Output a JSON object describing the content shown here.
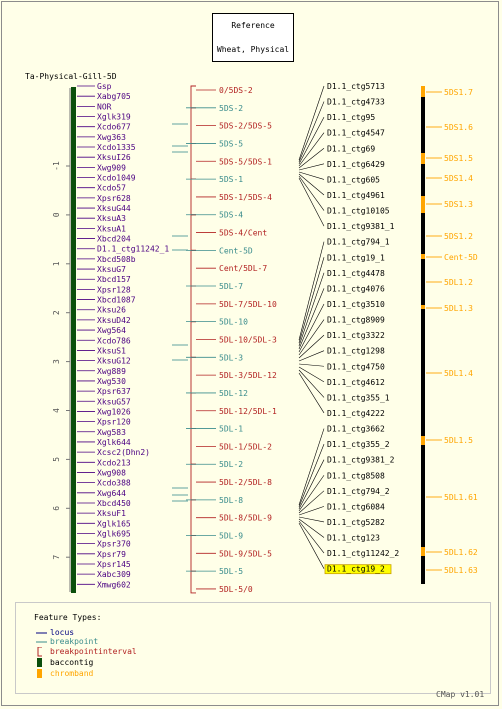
{
  "reference": {
    "line1": "Reference",
    "line2": "Wheat, Physical"
  },
  "map_title": "Ta-Physical-Gill-5D",
  "axis_ticks": [
    "-1",
    "0",
    "1",
    "2",
    "3",
    "4",
    "5",
    "6",
    "7"
  ],
  "loci": [
    "Gsp",
    "Xabg705",
    "NOR",
    "Xglk319",
    "Xcdo677",
    "Xwg363",
    "Xcdo1335",
    "XksuI26",
    "Xwg909",
    "Xcdo1049",
    "Xcdo57",
    "Xpsr628",
    "XksuG44",
    "XksuA3",
    "XksuA1",
    "Xbcd204",
    "D1.1_ctg11242_1",
    "Xbcd508b",
    "XksuG7",
    "Xbcd157",
    "Xpsr128",
    "Xbcd1087",
    "Xksu26",
    "XksuD42",
    "Xwg564",
    "Xcdo786",
    "XksuS1",
    "XksuG12",
    "Xwg889",
    "Xwg530",
    "Xpsr637",
    "XksuG57",
    "Xwg1026",
    "Xpsr120",
    "Xwg583",
    "Xglk644",
    "Xcsc2(Dhn2)",
    "Xcdo213",
    "Xwg908",
    "Xcdo388",
    "Xwg644",
    "Xbcd450",
    "XksuF1",
    "Xglk165",
    "Xglk695",
    "Xpsr370",
    "Xpsr79",
    "Xpsr145",
    "Xabc309",
    "Xmwg602"
  ],
  "intervals": [
    {
      "label": "0/5DS-2",
      "kind": "interval"
    },
    {
      "label": "5DS-2",
      "kind": "breakpoint"
    },
    {
      "label": "5DS-2/5DS-5",
      "kind": "interval"
    },
    {
      "label": "5DS-5",
      "kind": "breakpoint"
    },
    {
      "label": "5DS-5/5DS-1",
      "kind": "interval"
    },
    {
      "label": "5DS-1",
      "kind": "breakpoint"
    },
    {
      "label": "5DS-1/5DS-4",
      "kind": "interval"
    },
    {
      "label": "5DS-4",
      "kind": "breakpoint"
    },
    {
      "label": "5DS-4/Cent",
      "kind": "interval"
    },
    {
      "label": "Cent-5D",
      "kind": "breakpoint"
    },
    {
      "label": "Cent/5DL-7",
      "kind": "interval"
    },
    {
      "label": "5DL-7",
      "kind": "breakpoint"
    },
    {
      "label": "5DL-7/5DL-10",
      "kind": "interval"
    },
    {
      "label": "5DL-10",
      "kind": "breakpoint"
    },
    {
      "label": "5DL-10/5DL-3",
      "kind": "interval"
    },
    {
      "label": "5DL-3",
      "kind": "breakpoint"
    },
    {
      "label": "5DL-3/5DL-12",
      "kind": "interval"
    },
    {
      "label": "5DL-12",
      "kind": "breakpoint"
    },
    {
      "label": "5DL-12/5DL-1",
      "kind": "interval"
    },
    {
      "label": "5DL-1",
      "kind": "breakpoint"
    },
    {
      "label": "5DL-1/5DL-2",
      "kind": "interval"
    },
    {
      "label": "5DL-2",
      "kind": "breakpoint"
    },
    {
      "label": "5DL-2/5DL-8",
      "kind": "interval"
    },
    {
      "label": "5DL-8",
      "kind": "breakpoint"
    },
    {
      "label": "5DL-8/5DL-9",
      "kind": "interval"
    },
    {
      "label": "5DL-9",
      "kind": "breakpoint"
    },
    {
      "label": "5DL-9/5DL-5",
      "kind": "interval"
    },
    {
      "label": "5DL-5",
      "kind": "breakpoint"
    },
    {
      "label": "5DL-5/0",
      "kind": "interval"
    }
  ],
  "contigs": [
    "D1.1_ctg5713",
    "D1.1_ctg4733",
    "D1.1_ctg95",
    "D1.1_ctg4547",
    "D1.1_ctg69",
    "D1.1_ctg6429",
    "D1.1_ctg605",
    "D1.1_ctg4961",
    "D1.1_ctg10105",
    "D1.1_ctg9381_1",
    "D1.1_ctg794_1",
    "D1.1_ctg19_1",
    "D1.1_ctg4478",
    "D1.1_ctg4076",
    "D1.1_ctg3510",
    "D1.1_ctg8909",
    "D1.1_ctg3322",
    "D1.1_ctg1298",
    "D1.1_ctg4750",
    "D1.1_ctg4612",
    "D1.1_ctg355_1",
    "D1.1_ctg4222",
    "D1.1_ctg3662",
    "D1.1_ctg355_2",
    "D1.1_ctg9381_2",
    "D1.1_ctg8508",
    "D1.1_ctg794_2",
    "D1.1_ctg6084",
    "D1.1_ctg5282",
    "D1.1_ctg123",
    "D1.1_ctg11242_2",
    "D1.1_ctg19_2"
  ],
  "chrombands": [
    "5DS1.7",
    "5DS1.6",
    "5DS1.5",
    "5DS1.4",
    "5DS1.3",
    "5DS1.2",
    "Cent-5D",
    "5DL1.2",
    "5DL1.3",
    "5DL1.4",
    "5DL1.5",
    "5DL1.61",
    "5DL1.62",
    "5DL1.63"
  ],
  "legend": {
    "title": "Feature Types:",
    "items": [
      {
        "label": "locus",
        "color": "#000080"
      },
      {
        "label": "breakpoint",
        "color": "#3A8C8C"
      },
      {
        "label": "breakpointinterval",
        "color": "#B22222"
      },
      {
        "label": "baccontig",
        "color": "#0B4F0B"
      },
      {
        "label": "chromband",
        "color": "#FFA500"
      }
    ]
  },
  "version": "CMap v1.01",
  "colors": {
    "locus": "#4B0082",
    "breakpoint": "#3A8C8C",
    "interval": "#B22222",
    "contig": "#000000",
    "chromband": "#FFA500",
    "bac": "#0B4F0B",
    "highlight": "#FFFF00"
  }
}
